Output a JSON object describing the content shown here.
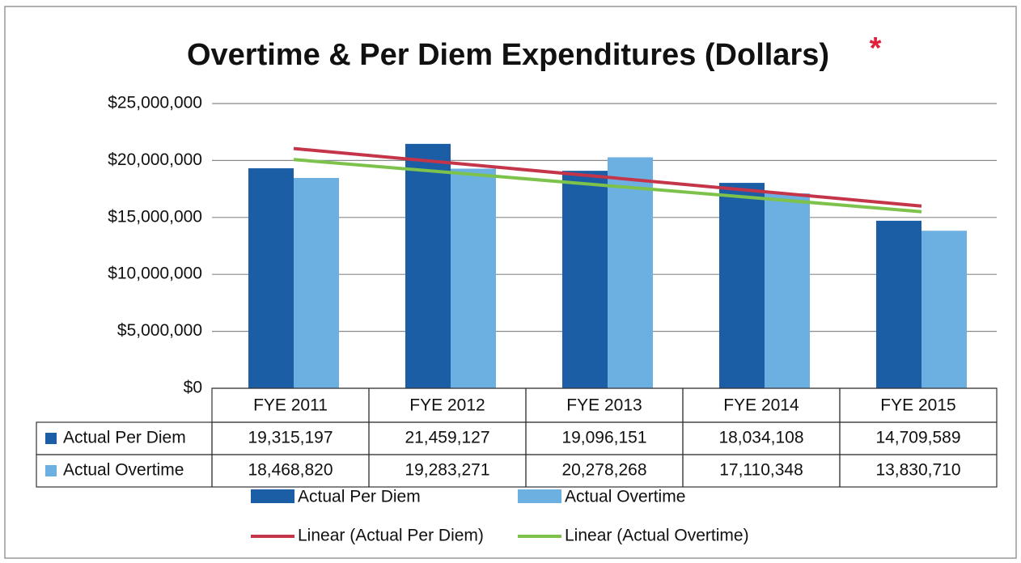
{
  "chart_data": {
    "type": "bar",
    "title": "Overtime & Per Diem Expenditures (Dollars)",
    "title_mark": "*",
    "categories": [
      "FYE 2011",
      "FYE 2012",
      "FYE 2013",
      "FYE 2014",
      "FYE 2015"
    ],
    "series": [
      {
        "name": "Actual Per Diem",
        "color": "#1b5ea6",
        "values": [
          19315197,
          21459127,
          19096151,
          18034108,
          14709589
        ],
        "value_labels": [
          "19,315,197",
          "21,459,127",
          "19,096,151",
          "18,034,108",
          "14,709,589"
        ]
      },
      {
        "name": "Actual Overtime",
        "color": "#6cb0e2",
        "values": [
          18468820,
          19283271,
          20278268,
          17110348,
          13830710
        ],
        "value_labels": [
          "18,468,820",
          "19,283,271",
          "20,278,268",
          "17,110,348",
          "13,830,710"
        ]
      }
    ],
    "trendlines": [
      {
        "name": "Linear (Actual Per Diem)",
        "color": "#c4354a"
      },
      {
        "name": "Linear (Actual Overtime)",
        "color": "#7cc24b"
      }
    ],
    "ylim": [
      0,
      25000000
    ],
    "yticks": [
      {
        "value": 0,
        "label": "$0"
      },
      {
        "value": 5000000,
        "label": "$5,000,000"
      },
      {
        "value": 10000000,
        "label": "$10,000,000"
      },
      {
        "value": 15000000,
        "label": "$15,000,000"
      },
      {
        "value": 20000000,
        "label": "$20,000,000"
      },
      {
        "value": 25000000,
        "label": "$25,000,000"
      }
    ],
    "grid": true
  }
}
